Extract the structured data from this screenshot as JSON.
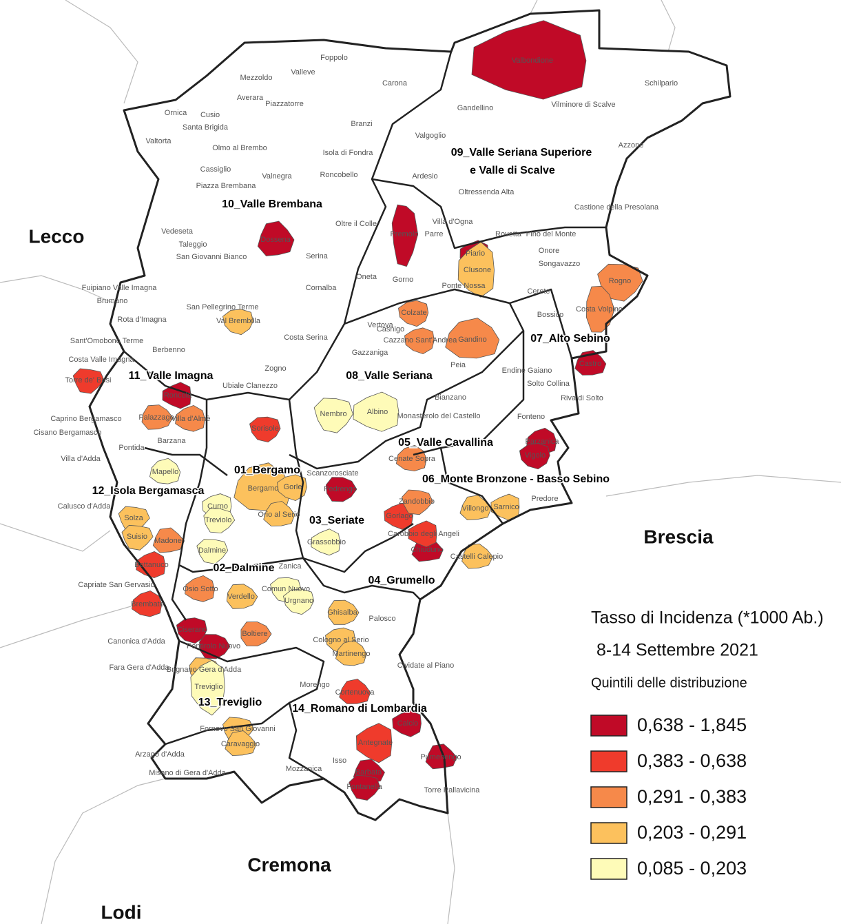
{
  "map": {
    "regions": [
      "Lecco",
      "Brescia",
      "Cremona",
      "Lodi"
    ],
    "districts": [
      {
        "label": "01_Bergamo"
      },
      {
        "label": "02_Dalmine"
      },
      {
        "label": "03_Seriate"
      },
      {
        "label": "04_Grumello"
      },
      {
        "label": "05_Valle Cavallina"
      },
      {
        "label": "06_Monte Bronzone - Basso Sebino"
      },
      {
        "label": "07_Alto Sebino"
      },
      {
        "label": "08_Valle Seriana"
      },
      {
        "lines": [
          "09_Valle Seriana Superiore",
          "e Valle di Scalve"
        ]
      },
      {
        "label": "10_Valle Brembana"
      },
      {
        "label": "11_Valle Imagna"
      },
      {
        "label": "12_Isola Bergamasca"
      },
      {
        "label": "13_Treviglio"
      },
      {
        "label": "14_Romano di Lombardia"
      }
    ],
    "municipalities": [
      {
        "name": "Foppolo"
      },
      {
        "name": "Valleve"
      },
      {
        "name": "Mezzoldo"
      },
      {
        "name": "Carona"
      },
      {
        "name": "Averara"
      },
      {
        "name": "Piazzatorre"
      },
      {
        "name": "Valbondione",
        "color": "#c00a27"
      },
      {
        "name": "Schilpario"
      },
      {
        "name": "Gandellino"
      },
      {
        "name": "Vilminore di Scalve"
      },
      {
        "name": "Ornica"
      },
      {
        "name": "Cusio"
      },
      {
        "name": "Santa Brigida"
      },
      {
        "name": "Branzi"
      },
      {
        "name": "Valtorta"
      },
      {
        "name": "Valgoglio"
      },
      {
        "name": "Azzone"
      },
      {
        "name": "Olmo al Brembo"
      },
      {
        "name": "Isola di Fondra"
      },
      {
        "name": "Cassiglio"
      },
      {
        "name": "Valnegra"
      },
      {
        "name": "Roncobello"
      },
      {
        "name": "Ardesio"
      },
      {
        "name": "Piazza Brembana"
      },
      {
        "name": "Oltressenda Alta"
      },
      {
        "name": "Castione della Presolana"
      },
      {
        "name": "Oltre il Colle"
      },
      {
        "name": "Villa d'Ogna"
      },
      {
        "name": "Vedeseta"
      },
      {
        "name": "Premolo",
        "color": "#c00a27"
      },
      {
        "name": "Parre"
      },
      {
        "name": "Rovetta"
      },
      {
        "name": "Fino del Monte"
      },
      {
        "name": "Dossena",
        "color": "#c00a27"
      },
      {
        "name": "Taleggio"
      },
      {
        "name": "San Giovanni Bianco"
      },
      {
        "name": "Serina"
      },
      {
        "name": "Piario",
        "color": "#c00a27"
      },
      {
        "name": "Onore"
      },
      {
        "name": "Songavazzo"
      },
      {
        "name": "Clusone",
        "color": "#fcc15d"
      },
      {
        "name": "Rogno",
        "color": "#f6894a"
      },
      {
        "name": "Oneta"
      },
      {
        "name": "Gorno"
      },
      {
        "name": "Ponte Nossa"
      },
      {
        "name": "Fuipiano Valle Imagna"
      },
      {
        "name": "Cerete"
      },
      {
        "name": "Brumano"
      },
      {
        "name": "Cornalba"
      },
      {
        "name": "San Pellegrino Terme"
      },
      {
        "name": "Val Brembilla",
        "color": "#fcc15d"
      },
      {
        "name": "Costa Volpino",
        "color": "#f6894a"
      },
      {
        "name": "Bossico"
      },
      {
        "name": "Rota d'Imagna"
      },
      {
        "name": "Berbenno"
      },
      {
        "name": "Vertova"
      },
      {
        "name": "Colzate",
        "color": "#f6894a"
      },
      {
        "name": "Casnigo"
      },
      {
        "name": "Gandino",
        "color": "#f6894a"
      },
      {
        "name": "Cazzano Sant'Andrea",
        "color": "#f6894a"
      },
      {
        "name": "Costa Serina"
      },
      {
        "name": "Sant'Omobono Terme"
      },
      {
        "name": "Costa Valle Imagna"
      },
      {
        "name": "Gazzaniga"
      },
      {
        "name": "Castro",
        "color": "#c00a27"
      },
      {
        "name": "Peia"
      },
      {
        "name": "Endine Gaiano"
      },
      {
        "name": "Zogno"
      },
      {
        "name": "Ubiale Clanezzo"
      },
      {
        "name": "Torre de' Busi",
        "color": "#ef3b2c"
      },
      {
        "name": "Solto Collina"
      },
      {
        "name": "Roncola",
        "color": "#c00a27"
      },
      {
        "name": "Bianzano"
      },
      {
        "name": "Riva di Solto"
      },
      {
        "name": "Albino",
        "color": "#fefbb8"
      },
      {
        "name": "Nembro",
        "color": "#fefbb8"
      },
      {
        "name": "Monasterolo del Castello"
      },
      {
        "name": "Fonteno"
      },
      {
        "name": "Caprino Bergamasco"
      },
      {
        "name": "Palazzago",
        "color": "#f6894a"
      },
      {
        "name": "Villa d'Almè",
        "color": "#f6894a"
      },
      {
        "name": "Sorisole",
        "color": "#ef3b2c"
      },
      {
        "name": "Cisano Bergamasco"
      },
      {
        "name": "Parzanica",
        "color": "#c00a27"
      },
      {
        "name": "Barzana"
      },
      {
        "name": "Pontida"
      },
      {
        "name": "Cenate Sopra",
        "color": "#f6894a"
      },
      {
        "name": "Vigolo",
        "color": "#c00a27"
      },
      {
        "name": "Villa d'Adda"
      },
      {
        "name": "Mapello",
        "color": "#fefbb8"
      },
      {
        "name": "Scanzorosciate"
      },
      {
        "name": "Pedrengo",
        "color": "#c00a27"
      },
      {
        "name": "Bergamo",
        "color": "#fcc15d"
      },
      {
        "name": "Gorle",
        "color": "#fcc15d"
      },
      {
        "name": "Predore"
      },
      {
        "name": "Calusco d'Adda"
      },
      {
        "name": "Curno",
        "color": "#fefbb8"
      },
      {
        "name": "Treviolo",
        "color": "#fefbb8"
      },
      {
        "name": "Orio al Serio",
        "color": "#fcc15d"
      },
      {
        "name": "Gorlago",
        "color": "#ef3b2c"
      },
      {
        "name": "Zandobbio",
        "color": "#f6894a"
      },
      {
        "name": "Villongo",
        "color": "#fcc15d"
      },
      {
        "name": "Sarnico",
        "color": "#fcc15d"
      },
      {
        "name": "Solza",
        "color": "#fcc15d"
      },
      {
        "name": "Chiuduno",
        "color": "#c00a27"
      },
      {
        "name": "Carobbio degli Angeli",
        "color": "#ef3b2c"
      },
      {
        "name": "Suisio",
        "color": "#fcc15d"
      },
      {
        "name": "Madone",
        "color": "#f6894a"
      },
      {
        "name": "Grassobbio",
        "color": "#fefbb8"
      },
      {
        "name": "Dalmine",
        "color": "#fefbb8"
      },
      {
        "name": "Castelli Calepio",
        "color": "#fcc15d"
      },
      {
        "name": "Bottanuco",
        "color": "#ef3b2c"
      },
      {
        "name": "Zanica"
      },
      {
        "name": "Capriate San Gervasio"
      },
      {
        "name": "Osio Sotto",
        "color": "#f6894a"
      },
      {
        "name": "Comun Nuovo",
        "color": "#fefbb8"
      },
      {
        "name": "Verdello",
        "color": "#fcc15d"
      },
      {
        "name": "Brembate",
        "color": "#ef3b2c"
      },
      {
        "name": "Urgnano",
        "color": "#fefbb8"
      },
      {
        "name": "Ghisalba",
        "color": "#fcc15d"
      },
      {
        "name": "Palosco"
      },
      {
        "name": "Ciserano",
        "color": "#c00a27"
      },
      {
        "name": "Boltiere",
        "color": "#f6894a"
      },
      {
        "name": "Canonica d'Adda"
      },
      {
        "name": "Cologno al Serio",
        "color": "#fcc15d"
      },
      {
        "name": "Pontirolo Nuovo",
        "color": "#c00a27"
      },
      {
        "name": "Martinengo",
        "color": "#fcc15d"
      },
      {
        "name": "Fara Gera d'Adda"
      },
      {
        "name": "Brignano Gera d'Adda",
        "color": "#fcc15d"
      },
      {
        "name": "Cividate al Piano"
      },
      {
        "name": "Treviglio",
        "color": "#fefbb8"
      },
      {
        "name": "Morengo"
      },
      {
        "name": "Cortenuova",
        "color": "#ef3b2c"
      },
      {
        "name": "Calcio",
        "color": "#c00a27"
      },
      {
        "name": "Fornovo San Giovanni",
        "color": "#fcc15d"
      },
      {
        "name": "Caravaggio",
        "color": "#fcc15d"
      },
      {
        "name": "Antegnate",
        "color": "#ef3b2c"
      },
      {
        "name": "Arzago d'Adda"
      },
      {
        "name": "Pumenengo",
        "color": "#c00a27"
      },
      {
        "name": "Isso"
      },
      {
        "name": "Mozzanica"
      },
      {
        "name": "Barbata",
        "color": "#c00a27"
      },
      {
        "name": "Misano di Gera d'Adda"
      },
      {
        "name": "Fontanella",
        "color": "#c00a27"
      },
      {
        "name": "Torre Pallavicina"
      }
    ]
  },
  "legend": {
    "title": "Tasso di Incidenza (*1000 Ab.)",
    "subtitle": "8-14 Settembre 2021",
    "note": "Quintili delle distribuzione",
    "items": [
      {
        "label": "0,638 - 1,845",
        "color": "#c00a27"
      },
      {
        "label": "0,383 - 0,638",
        "color": "#ef3b2c"
      },
      {
        "label": "0,291 - 0,383",
        "color": "#f6894a"
      },
      {
        "label": "0,203 - 0,291",
        "color": "#fcc15d"
      },
      {
        "label": "0,085 - 0,203",
        "color": "#fefbb8"
      }
    ]
  }
}
